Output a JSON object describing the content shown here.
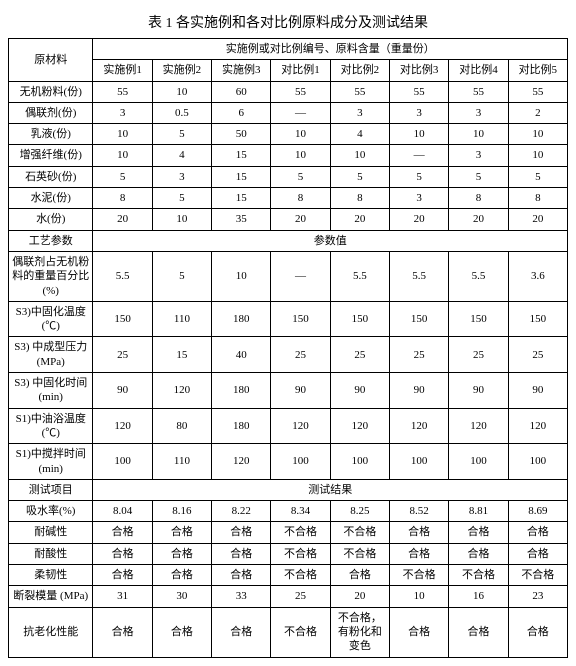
{
  "title": "表 1 各实施例和各对比例原料成分及测试结果",
  "header": {
    "material": "原材料",
    "group": "实施例或对比例编号、原料含量（重量份）",
    "cols": [
      "实施例1",
      "实施例2",
      "实施例3",
      "对比例1",
      "对比例2",
      "对比例3",
      "对比例4",
      "对比例5"
    ]
  },
  "materials": [
    {
      "label": "无机粉料(份)",
      "v": [
        "55",
        "10",
        "60",
        "55",
        "55",
        "55",
        "55",
        "55"
      ]
    },
    {
      "label": "偶联剂(份)",
      "v": [
        "3",
        "0.5",
        "6",
        "—",
        "3",
        "3",
        "3",
        "2"
      ]
    },
    {
      "label": "乳液(份)",
      "v": [
        "10",
        "5",
        "50",
        "10",
        "4",
        "10",
        "10",
        "10"
      ]
    },
    {
      "label": "增强纤维(份)",
      "v": [
        "10",
        "4",
        "15",
        "10",
        "10",
        "—",
        "3",
        "10"
      ]
    },
    {
      "label": "石英砂(份)",
      "v": [
        "5",
        "3",
        "15",
        "5",
        "5",
        "5",
        "5",
        "5"
      ]
    },
    {
      "label": "水泥(份)",
      "v": [
        "8",
        "5",
        "15",
        "8",
        "8",
        "3",
        "8",
        "8"
      ]
    },
    {
      "label": "水(份)",
      "v": [
        "20",
        "10",
        "35",
        "20",
        "20",
        "20",
        "20",
        "20"
      ]
    }
  ],
  "process_header_left": "工艺参数",
  "process_header_right": "参数值",
  "process": [
    {
      "label": "偶联剂占无机粉料的重量百分比(%)",
      "v": [
        "5.5",
        "5",
        "10",
        "—",
        "5.5",
        "5.5",
        "5.5",
        "3.6"
      ]
    },
    {
      "label": "S3)中固化温度(℃)",
      "v": [
        "150",
        "110",
        "180",
        "150",
        "150",
        "150",
        "150",
        "150"
      ]
    },
    {
      "label": "S3) 中成型压力(MPa)",
      "v": [
        "25",
        "15",
        "40",
        "25",
        "25",
        "25",
        "25",
        "25"
      ]
    },
    {
      "label": "S3) 中固化时间(min)",
      "v": [
        "90",
        "120",
        "180",
        "90",
        "90",
        "90",
        "90",
        "90"
      ]
    },
    {
      "label": "S1)中油浴温度(℃)",
      "v": [
        "120",
        "80",
        "180",
        "120",
        "120",
        "120",
        "120",
        "120"
      ]
    },
    {
      "label": "S1)中搅拌时间(min)",
      "v": [
        "100",
        "110",
        "120",
        "100",
        "100",
        "100",
        "100",
        "100"
      ]
    }
  ],
  "test_header_left": "测试项目",
  "test_header_right": "测试结果",
  "tests": [
    {
      "label": "吸水率(%)",
      "v": [
        "8.04",
        "8.16",
        "8.22",
        "8.34",
        "8.25",
        "8.52",
        "8.81",
        "8.69"
      ]
    },
    {
      "label": "耐碱性",
      "v": [
        "合格",
        "合格",
        "合格",
        "不合格",
        "不合格",
        "合格",
        "合格",
        "合格"
      ]
    },
    {
      "label": "耐酸性",
      "v": [
        "合格",
        "合格",
        "合格",
        "不合格",
        "不合格",
        "合格",
        "合格",
        "合格"
      ]
    },
    {
      "label": "柔韧性",
      "v": [
        "合格",
        "合格",
        "合格",
        "不合格",
        "合格",
        "不合格",
        "不合格",
        "不合格"
      ]
    },
    {
      "label": "断裂模量 (MPa)",
      "v": [
        "31",
        "30",
        "33",
        "25",
        "20",
        "10",
        "16",
        "23"
      ]
    },
    {
      "label": "抗老化性能",
      "v": [
        "合格",
        "合格",
        "合格",
        "不合格",
        "不合格，有粉化和变色",
        "合格",
        "合格",
        "合格"
      ]
    }
  ]
}
